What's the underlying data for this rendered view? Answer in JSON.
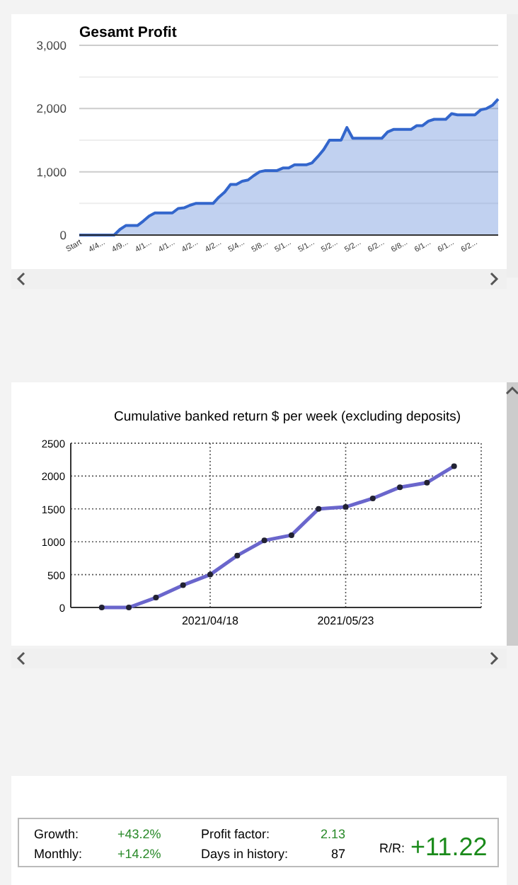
{
  "chart_data": [
    {
      "type": "area",
      "title": "Gesamt Profit",
      "categories": [
        "Start",
        null,
        null,
        null,
        "4/4...",
        null,
        null,
        null,
        "4/9...",
        null,
        null,
        null,
        "4/1...",
        null,
        null,
        null,
        "4/1...",
        null,
        null,
        null,
        "4/2...",
        null,
        null,
        null,
        "4/2...",
        null,
        null,
        null,
        "5/4...",
        null,
        null,
        null,
        "5/8...",
        null,
        null,
        null,
        "5/1...",
        null,
        null,
        null,
        "5/1...",
        null,
        null,
        null,
        "5/2...",
        null,
        null,
        null,
        "5/2...",
        null,
        null,
        null,
        "6/2...",
        null,
        null,
        null,
        "6/8...",
        null,
        null,
        null,
        "6/1...",
        null,
        null,
        null,
        "6/1...",
        null,
        null,
        null,
        "6/2...",
        null,
        null,
        null,
        null
      ],
      "series": [
        {
          "color": "#3366cc",
          "values": [
            0,
            0,
            0,
            0,
            0,
            0,
            0,
            90,
            150,
            150,
            150,
            220,
            300,
            350,
            350,
            350,
            350,
            420,
            430,
            470,
            500,
            500,
            500,
            500,
            600,
            680,
            800,
            800,
            850,
            870,
            940,
            1000,
            1020,
            1020,
            1020,
            1060,
            1060,
            1110,
            1110,
            1110,
            1140,
            1240,
            1350,
            1500,
            1500,
            1500,
            1700,
            1530,
            1530,
            1530,
            1530,
            1530,
            1530,
            1630,
            1670,
            1670,
            1670,
            1670,
            1730,
            1730,
            1800,
            1830,
            1830,
            1830,
            1920,
            1900,
            1900,
            1900,
            1900,
            1980,
            2000,
            2050,
            2150
          ]
        }
      ],
      "ylim": [
        0,
        3000
      ],
      "yticks": [
        0,
        {
          "value": 500,
          "label": null
        },
        {
          "value": 1000,
          "label": "1,000"
        },
        {
          "value": 1500,
          "label": null
        },
        {
          "value": 2000,
          "label": "2,000"
        },
        {
          "value": 2500,
          "label": null
        },
        {
          "value": 3000,
          "label": "3,000"
        }
      ],
      "grid": "y"
    },
    {
      "type": "line",
      "title": "Cumulative banked return $ per week (excluding deposits)",
      "x": [
        "2021-03-21",
        "2021-03-28",
        "2021-04-04",
        "2021-04-11",
        "2021-04-18",
        "2021-04-25",
        "2021-05-02",
        "2021-05-09",
        "2021-05-16",
        "2021-05-23",
        "2021-05-30",
        "2021-06-06",
        "2021-06-13",
        "2021-06-20"
      ],
      "series": [
        {
          "color": "#6a66cc",
          "values": [
            0,
            0,
            150,
            340,
            500,
            790,
            1020,
            1100,
            1500,
            1530,
            1660,
            1830,
            1900,
            2150
          ]
        }
      ],
      "xlim": [
        "2021-03-13",
        "2021-06-27"
      ],
      "xticks": [
        {
          "value": "2021-04-18",
          "label": "2021/04/18"
        },
        {
          "value": "2021-05-23",
          "label": "2021/05/23"
        }
      ],
      "ylim": [
        0,
        2500
      ],
      "yticks": [
        0,
        500,
        1000,
        1500,
        2000,
        2500
      ],
      "grid": true,
      "line_style": "solid",
      "marker": "circle"
    },
    {
      "type": "other",
      "annotations": [
        "Growth:",
        "+43.2%",
        "Monthly:",
        "+14.2%",
        "Profit factor:",
        "2.13",
        "Days in history:",
        "87",
        "R/R:",
        "+11.22"
      ]
    }
  ]
}
